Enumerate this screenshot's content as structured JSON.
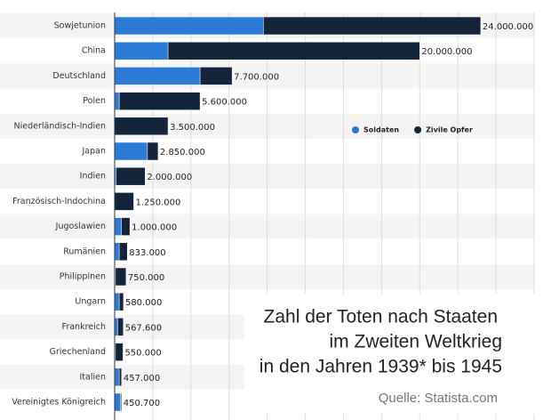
{
  "chart_data": {
    "type": "stacked-bar",
    "title": [
      "Zahl der Toten nach Staaten",
      "im Zweiten Weltkrieg",
      "in den Jahren 1939* bis 1945"
    ],
    "source": "Quelle: Statista.com",
    "categories": [
      "Sowjetunion",
      "China",
      "Deutschland",
      "Polen",
      "Niederländisch-Indien",
      "Japan",
      "Indien",
      "Französisch-Indochina",
      "Jugoslawien",
      "Rumänien",
      "Philippinen",
      "Ungarn",
      "Frankreich",
      "Griechenland",
      "Italien",
      "Vereinigtes Königreich"
    ],
    "series": [
      {
        "name": "Soldaten",
        "color": "#2b7bd6",
        "values": [
          9750000,
          3500000,
          5600000,
          300000,
          0,
          2150000,
          100000,
          0,
          450000,
          300000,
          50000,
          300000,
          200000,
          50000,
          300000,
          380000
        ]
      },
      {
        "name": "Zivile Opfer",
        "color": "#14243b",
        "values": [
          14250000,
          16500000,
          2100000,
          5300000,
          3500000,
          700000,
          1900000,
          1250000,
          550000,
          533000,
          700000,
          280000,
          367600,
          500000,
          157000,
          70700
        ]
      }
    ],
    "totals": {
      "values": [
        24000000,
        20000000,
        7700000,
        5600000,
        3500000,
        2850000,
        2000000,
        1250000,
        1000000,
        833000,
        750000,
        580000,
        567600,
        550000,
        457000,
        450700
      ],
      "value_labels": [
        "24.000.000",
        "20.000.000",
        "7.700.000",
        "5.600.000",
        "3.500.000",
        "2.850.000",
        "2.000.000",
        "1.250.000",
        "1.000.000",
        "833.000",
        "750.000",
        "580.000",
        "567.600",
        "550.000",
        "457.000",
        "450.700"
      ]
    },
    "xlim": [
      0,
      27500000
    ],
    "xticks": [
      0,
      2500000,
      5000000,
      7500000,
      10000000,
      12500000,
      15000000,
      17500000,
      20000000,
      22500000,
      25000000,
      27500000
    ],
    "grid": true,
    "legend": "upper-right"
  }
}
